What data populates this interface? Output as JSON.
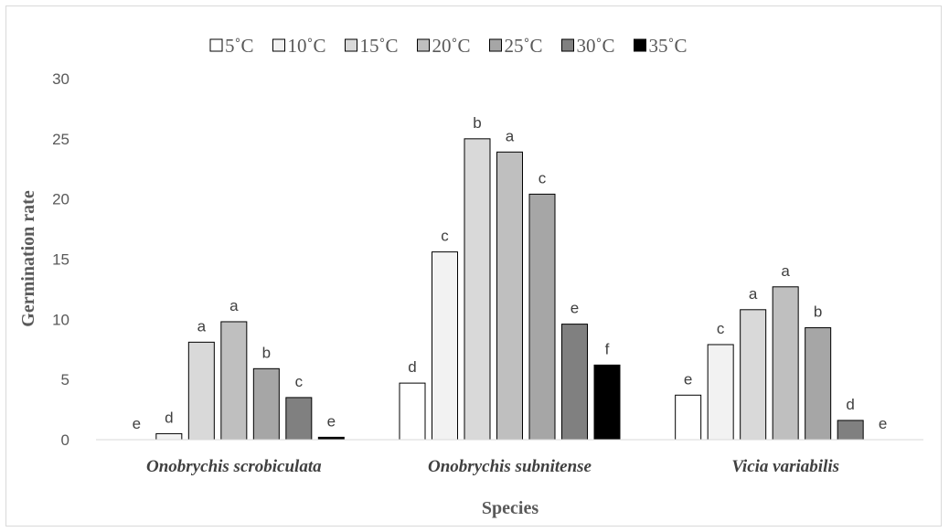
{
  "chart_data": {
    "type": "bar",
    "categories": [
      "Onobrychis scrobiculata",
      "Onobrychis subnitense",
      "Vicia variabilis"
    ],
    "series": [
      {
        "name": "5˚C",
        "color": "#ffffff",
        "values": [
          0,
          4.7,
          3.7
        ],
        "labels": [
          "e",
          "d",
          "e"
        ]
      },
      {
        "name": "10˚C",
        "color": "#f2f2f2",
        "values": [
          0.5,
          15.6,
          7.9
        ],
        "labels": [
          "d",
          "c",
          "c"
        ]
      },
      {
        "name": "15˚C",
        "color": "#d9d9d9",
        "values": [
          8.1,
          25.0,
          10.8
        ],
        "labels": [
          "a",
          "b",
          "a"
        ]
      },
      {
        "name": "20˚C",
        "color": "#bfbfbf",
        "values": [
          9.8,
          23.9,
          12.7
        ],
        "labels": [
          "a",
          "a",
          "a"
        ]
      },
      {
        "name": "25˚C",
        "color": "#a6a6a6",
        "values": [
          5.9,
          20.4,
          9.3
        ],
        "labels": [
          "b",
          "c",
          "b"
        ]
      },
      {
        "name": "30˚C",
        "color": "#808080",
        "values": [
          3.5,
          9.6,
          1.6
        ],
        "labels": [
          "c",
          "e",
          "d"
        ]
      },
      {
        "name": "35˚C",
        "color": "#000000",
        "values": [
          0.2,
          6.2,
          0
        ],
        "labels": [
          "e",
          "f",
          "e"
        ]
      }
    ],
    "title": "",
    "xlabel": "Species",
    "ylabel": "Germination rate",
    "ylim": [
      0,
      30
    ],
    "yticks": [
      "0",
      "5",
      "10",
      "15",
      "20",
      "25",
      "30"
    ],
    "grid": false,
    "legend_position": "top"
  }
}
